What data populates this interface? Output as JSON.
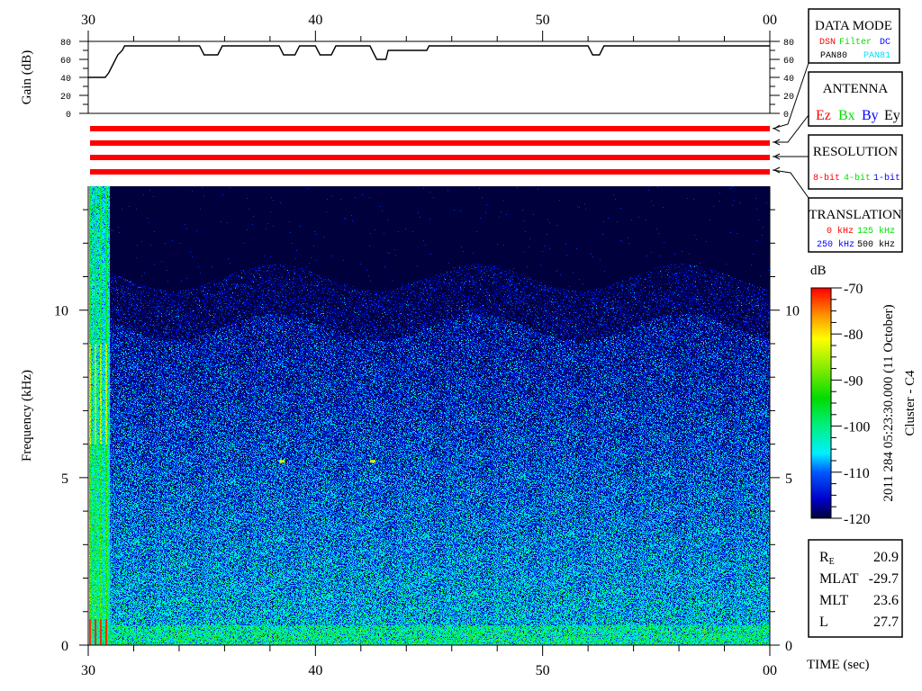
{
  "colors": {
    "red": "#ff0000",
    "green": "#00e000",
    "blue": "#0000ff",
    "cyan": "#00e0ff",
    "black": "#000000"
  },
  "gain_panel": {
    "ylabel": "Gain (dB)",
    "yticks": [
      "0",
      "20",
      "40",
      "60",
      "80"
    ],
    "series": [
      [
        30,
        40
      ],
      [
        30.75,
        40
      ],
      [
        30.9,
        45
      ],
      [
        31.1,
        55
      ],
      [
        31.3,
        65
      ],
      [
        31.5,
        70
      ],
      [
        31.6,
        75
      ],
      [
        34.9,
        75
      ],
      [
        35,
        70
      ],
      [
        35.1,
        65
      ],
      [
        35.7,
        65
      ],
      [
        35.8,
        70
      ],
      [
        35.9,
        75
      ],
      [
        38.4,
        75
      ],
      [
        38.5,
        70
      ],
      [
        38.6,
        65
      ],
      [
        39.1,
        65
      ],
      [
        39.2,
        70
      ],
      [
        39.3,
        75
      ],
      [
        40,
        75
      ],
      [
        40.1,
        70
      ],
      [
        40.2,
        65
      ],
      [
        40.7,
        65
      ],
      [
        40.8,
        70
      ],
      [
        40.9,
        75
      ],
      [
        42.4,
        75
      ],
      [
        42.5,
        70
      ],
      [
        42.6,
        65
      ],
      [
        42.7,
        60
      ],
      [
        43.1,
        60
      ],
      [
        43.2,
        70
      ],
      [
        44.9,
        70
      ],
      [
        45,
        75
      ],
      [
        52,
        75
      ],
      [
        52.1,
        70
      ],
      [
        52.2,
        65
      ],
      [
        52.5,
        65
      ],
      [
        52.6,
        70
      ],
      [
        52.7,
        75
      ],
      [
        60,
        75
      ]
    ]
  },
  "status_bars": {
    "count": 4,
    "color": "#ff0000"
  },
  "legends": {
    "data_mode": {
      "title": "DATA MODE",
      "items": [
        {
          "label": "DSN",
          "color": "#ff0000"
        },
        {
          "label": "Filter",
          "color": "#00e000"
        },
        {
          "label": "DC",
          "color": "#0000ff"
        },
        {
          "label": "PAN80",
          "color": "#000000"
        },
        {
          "label": "PAN81",
          "color": "#00e0ff"
        }
      ]
    },
    "antenna": {
      "title": "ANTENNA",
      "items": [
        {
          "label": "Ez",
          "color": "#ff0000"
        },
        {
          "label": "Bx",
          "color": "#00e000"
        },
        {
          "label": "By",
          "color": "#0000ff"
        },
        {
          "label": "Ey",
          "color": "#000000"
        }
      ]
    },
    "resolution": {
      "title": "RESOLUTION",
      "items": [
        {
          "label": "8-bit",
          "color": "#ff0000"
        },
        {
          "label": "4-bit",
          "color": "#00e000"
        },
        {
          "label": "1-bit",
          "color": "#0000ff"
        }
      ]
    },
    "translation": {
      "title": "TRANSLATION",
      "items": [
        {
          "label": "0 kHz",
          "color": "#ff0000"
        },
        {
          "label": "125 kHz",
          "color": "#00e000"
        },
        {
          "label": "250 kHz",
          "color": "#0000ff"
        },
        {
          "label": "500 kHz",
          "color": "#000000"
        }
      ]
    }
  },
  "chart_data": {
    "type": "heatmap",
    "xlabel": "TIME (sec)",
    "ylabel": "Frequency (kHz)",
    "xticks": [
      "30",
      "40",
      "50",
      "00"
    ],
    "xlim": [
      30,
      60
    ],
    "yticks": [
      "0",
      "5",
      "10"
    ],
    "ylim": [
      0,
      13.7
    ],
    "colorbar": {
      "label": "dB",
      "ticks": [
        "-70",
        "-80",
        "-90",
        "-100",
        "-110",
        "-120"
      ],
      "range": [
        -120,
        -70
      ]
    },
    "title_vertical": "2011 284 05:23:30.000 (11 October)",
    "spacecraft": "Cluster - C4"
  },
  "position_info": [
    {
      "label": "R",
      "sub": "E",
      "value": "20.9"
    },
    {
      "label": "MLAT",
      "value": "-29.7"
    },
    {
      "label": "MLT",
      "value": "23.6"
    },
    {
      "label": "L",
      "value": "27.7"
    }
  ]
}
